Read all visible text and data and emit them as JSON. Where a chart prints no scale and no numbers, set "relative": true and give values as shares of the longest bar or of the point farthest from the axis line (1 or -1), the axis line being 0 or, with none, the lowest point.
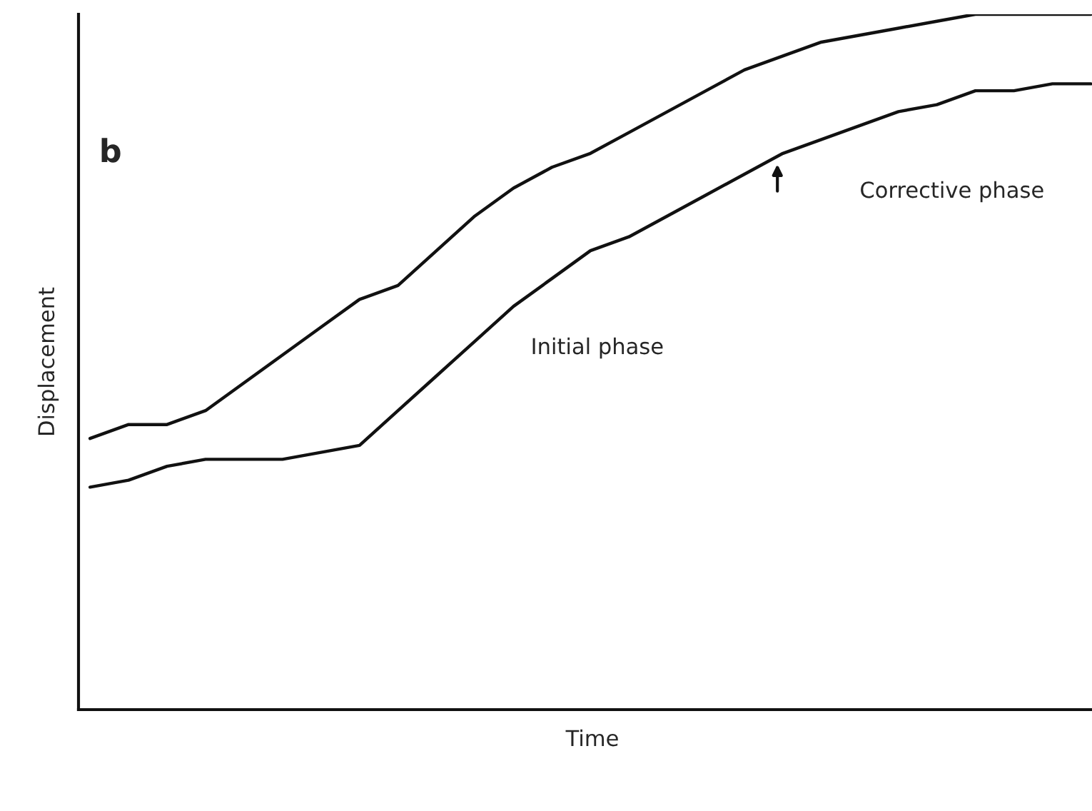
{
  "chart_data": {
    "type": "line",
    "relative": true,
    "xlabel": "Time",
    "ylabel": "Displacement",
    "categories": [
      null,
      null,
      null,
      null,
      null,
      null,
      null,
      null,
      null,
      null,
      null,
      null,
      null,
      null,
      null,
      null,
      null,
      null,
      null,
      null,
      null,
      null,
      null,
      null,
      null,
      null,
      null
    ],
    "series": [
      {
        "color": "#111111",
        "values": [
          0.39,
          0.41,
          0.41,
          0.43,
          0.47,
          0.51,
          0.55,
          0.59,
          0.61,
          0.66,
          0.71,
          0.75,
          0.78,
          0.8,
          0.83,
          0.86,
          0.89,
          0.92,
          0.94,
          0.96,
          0.97,
          0.98,
          0.99,
          1,
          1,
          1,
          1
        ]
      },
      {
        "color": "#111111",
        "values": [
          0.32,
          0.33,
          0.35,
          0.36,
          0.36,
          0.36,
          0.37,
          0.38,
          0.43,
          0.48,
          0.53,
          0.58,
          0.62,
          0.66,
          0.68,
          0.71,
          0.74,
          0.77,
          0.8,
          0.82,
          0.84,
          0.86,
          0.87,
          0.89,
          0.89,
          0.9,
          0.9
        ]
      }
    ],
    "annotations": [
      "b",
      "Initial phase",
      "Corrective phase"
    ],
    "grid": false,
    "legend": false
  }
}
